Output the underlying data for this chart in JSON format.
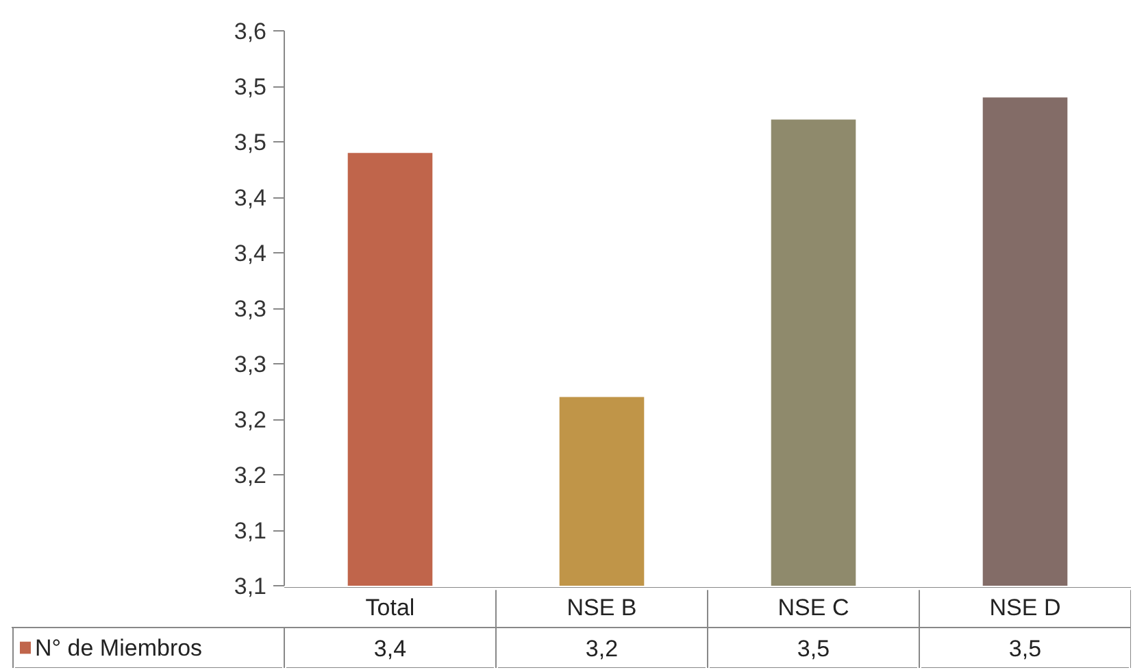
{
  "chart_data": {
    "type": "bar",
    "categories": [
      "Total",
      "NSE B",
      "NSE C",
      "NSE D"
    ],
    "series": [
      {
        "name": "N° de Miembros",
        "colors": [
          "#c0654b",
          "#c09548",
          "#8f8a6c",
          "#836c67"
        ],
        "values": [
          3.44,
          3.22,
          3.47,
          3.49
        ],
        "value_labels": [
          "3,4",
          "3,2",
          "3,5",
          "3,5"
        ]
      }
    ],
    "ylim": [
      3.05,
      3.55
    ],
    "yticks": [
      {
        "value": 3.05,
        "label": "3,1"
      },
      {
        "value": 3.1,
        "label": "3,1"
      },
      {
        "value": 3.15,
        "label": "3,2"
      },
      {
        "value": 3.2,
        "label": "3,2"
      },
      {
        "value": 3.25,
        "label": "3,3"
      },
      {
        "value": 3.3,
        "label": "3,3"
      },
      {
        "value": 3.35,
        "label": "3,4"
      },
      {
        "value": 3.4,
        "label": "3,4"
      },
      {
        "value": 3.45,
        "label": "3,5"
      },
      {
        "value": 3.5,
        "label": "3,5"
      },
      {
        "value": 3.55,
        "label": "3,6"
      }
    ],
    "grid": false,
    "legend": "bottom"
  }
}
